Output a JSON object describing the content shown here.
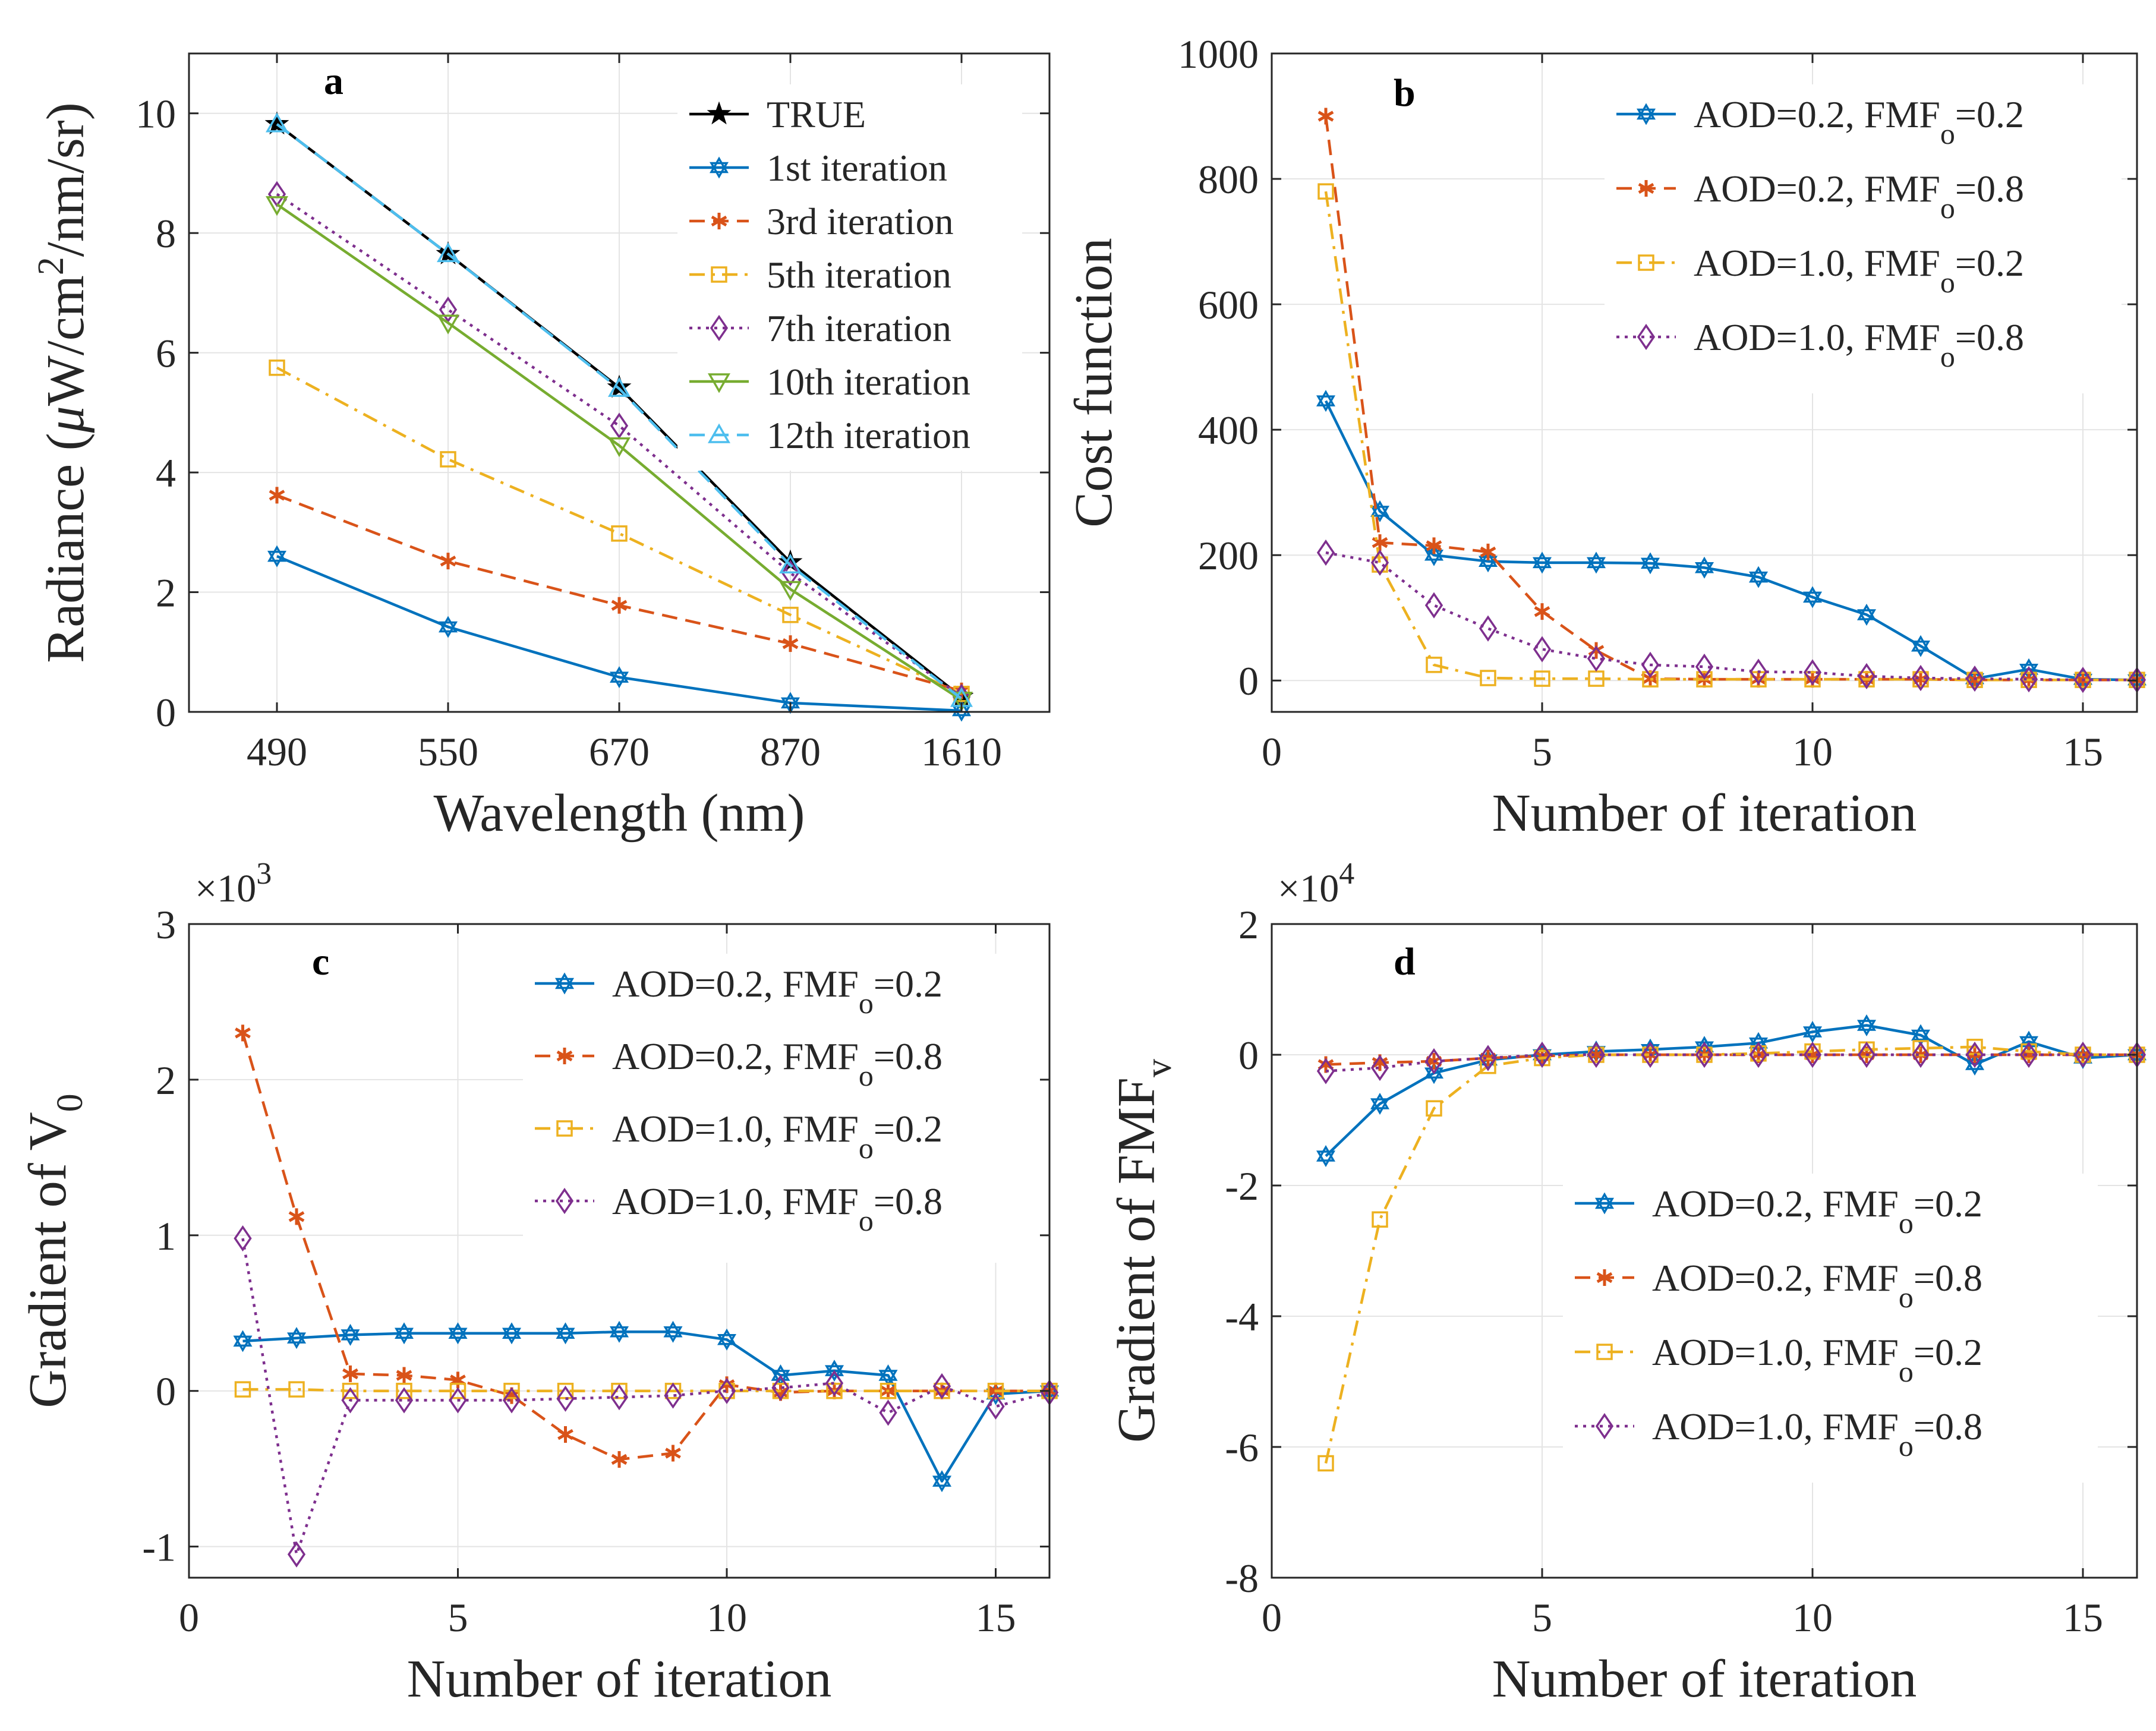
{
  "figure": {
    "background": "#ffffff"
  },
  "chart_data": [
    {
      "panel": "a",
      "type": "line",
      "xlabel": "Wavelength (nm)",
      "ylabel_parts": [
        "Radiance (",
        "μ",
        "W/cm",
        "2",
        "/nm/sr)"
      ],
      "categories": [
        "490",
        "550",
        "670",
        "870",
        "1610"
      ],
      "ylim": [
        0,
        11
      ],
      "yticks": [
        "0",
        "2",
        "4",
        "6",
        "8",
        "10"
      ],
      "ytick_values": [
        0,
        2,
        4,
        6,
        8,
        10
      ],
      "grid": true,
      "legend_position": "top-right",
      "series": [
        {
          "name": "TRUE",
          "label": "TRUE",
          "color": "#000000",
          "marker": "star-filled",
          "dash": "solid",
          "values": [
            9.82,
            7.65,
            5.42,
            2.5,
            0.25
          ]
        },
        {
          "name": "1st iteration",
          "label": "1st iteration",
          "color": "#0072bd",
          "marker": "hexagram",
          "dash": "solid",
          "values": [
            2.6,
            1.42,
            0.58,
            0.15,
            0.02
          ]
        },
        {
          "name": "3rd iteration",
          "label": "3rd iteration",
          "color": "#d95319",
          "marker": "asterisk",
          "dash": "dashed",
          "values": [
            3.62,
            2.52,
            1.78,
            1.14,
            0.35
          ]
        },
        {
          "name": "5th iteration",
          "label": "5th iteration",
          "color": "#edb120",
          "marker": "square",
          "dash": "dashdot",
          "values": [
            5.75,
            4.22,
            2.98,
            1.62,
            0.3
          ]
        },
        {
          "name": "7th iteration",
          "label": "7th iteration",
          "color": "#7e2f8e",
          "marker": "diamond",
          "dash": "dotted",
          "values": [
            8.65,
            6.72,
            4.78,
            2.32,
            0.25
          ]
        },
        {
          "name": "10th iteration",
          "label": "10th iteration",
          "color": "#77ac30",
          "marker": "triangle-down",
          "dash": "solid",
          "values": [
            8.48,
            6.5,
            4.45,
            2.05,
            0.2
          ]
        },
        {
          "name": "12th iteration",
          "label": "12th iteration",
          "color": "#4dbeee",
          "marker": "triangle-up",
          "dash": "dashed",
          "values": [
            9.82,
            7.65,
            5.4,
            2.45,
            0.22
          ]
        }
      ]
    },
    {
      "panel": "b",
      "type": "line",
      "xlabel": "Number of iteration",
      "ylabel": "Cost function",
      "xlim": [
        0,
        16
      ],
      "ylim": [
        -50,
        1000
      ],
      "xticks": [
        "0",
        "5",
        "10",
        "15"
      ],
      "xtick_values": [
        0,
        5,
        10,
        15
      ],
      "yticks": [
        "0",
        "200",
        "400",
        "600",
        "800",
        "1000"
      ],
      "ytick_values": [
        0,
        200,
        400,
        600,
        800,
        1000
      ],
      "grid": true,
      "legend_position": "top-right",
      "series": [
        {
          "name": "AOD=0.2, FMFo=0.2",
          "label_main": "AOD=0.2, FMF",
          "label_sub": "o",
          "label_tail": "=0.2",
          "color": "#0072bd",
          "marker": "hexagram",
          "dash": "solid",
          "x": [
            1,
            2,
            3,
            4,
            5,
            6,
            7,
            8,
            9,
            10,
            11,
            12,
            13,
            14,
            15,
            16
          ],
          "values": [
            446,
            270,
            200,
            190,
            188,
            188,
            187,
            180,
            165,
            133,
            105,
            55,
            3,
            18,
            2,
            1
          ]
        },
        {
          "name": "AOD=0.2, FMFo=0.8",
          "label_main": "AOD=0.2, FMF",
          "label_sub": "o",
          "label_tail": "=0.8",
          "color": "#d95319",
          "marker": "asterisk",
          "dash": "dashed",
          "x": [
            1,
            2,
            3,
            4,
            5,
            6,
            7,
            8,
            9,
            10,
            11,
            12,
            13,
            14,
            15,
            16
          ],
          "values": [
            900,
            220,
            215,
            205,
            110,
            48,
            3,
            2,
            2,
            2,
            2,
            2,
            1,
            1,
            1,
            1
          ]
        },
        {
          "name": "AOD=1.0, FMFo=0.2",
          "label_main": "AOD=1.0, FMF",
          "label_sub": "o",
          "label_tail": "=0.2",
          "color": "#edb120",
          "marker": "square",
          "dash": "dashdot",
          "x": [
            1,
            2,
            3,
            4,
            5,
            6,
            7,
            8,
            9,
            10,
            11,
            12,
            13,
            14,
            15,
            16
          ],
          "values": [
            780,
            185,
            25,
            4,
            3,
            3,
            2,
            2,
            2,
            2,
            2,
            2,
            1,
            1,
            1,
            1
          ]
        },
        {
          "name": "AOD=1.0, FMFo=0.8",
          "label_main": "AOD=1.0, FMF",
          "label_sub": "o",
          "label_tail": "=0.8",
          "color": "#7e2f8e",
          "marker": "diamond",
          "dash": "dotted",
          "x": [
            1,
            2,
            3,
            4,
            5,
            6,
            7,
            8,
            9,
            10,
            11,
            12,
            13,
            14,
            15,
            16
          ],
          "values": [
            204,
            188,
            120,
            83,
            50,
            35,
            25,
            22,
            14,
            13,
            7,
            4,
            3,
            2,
            1,
            1
          ]
        }
      ]
    },
    {
      "panel": "c",
      "type": "line",
      "xlabel": "Number of iteration",
      "ylabel_parts": [
        "Gradient of V",
        "0"
      ],
      "multiplier_base": "×10",
      "multiplier_exp": "3",
      "xlim": [
        0,
        16
      ],
      "ylim": [
        -1.2,
        3
      ],
      "xticks": [
        "0",
        "5",
        "10",
        "15"
      ],
      "xtick_values": [
        0,
        5,
        10,
        15
      ],
      "yticks": [
        "-1",
        "0",
        "1",
        "2",
        "3"
      ],
      "ytick_values": [
        -1,
        0,
        1,
        2,
        3
      ],
      "grid": true,
      "legend_position": "top-right",
      "series": [
        {
          "name": "AOD=0.2, FMFo=0.2",
          "label_main": "AOD=0.2, FMF",
          "label_sub": "o",
          "label_tail": "=0.2",
          "color": "#0072bd",
          "marker": "hexagram",
          "dash": "solid",
          "x": [
            1,
            2,
            3,
            4,
            5,
            6,
            7,
            8,
            9,
            10,
            11,
            12,
            13,
            14,
            15,
            16
          ],
          "values": [
            0.32,
            0.34,
            0.36,
            0.37,
            0.37,
            0.37,
            0.37,
            0.38,
            0.38,
            0.33,
            0.1,
            0.13,
            0.1,
            -0.58,
            -0.02,
            0.0
          ]
        },
        {
          "name": "AOD=0.2, FMFo=0.8",
          "label_main": "AOD=0.2, FMF",
          "label_sub": "o",
          "label_tail": "=0.8",
          "color": "#d95319",
          "marker": "asterisk",
          "dash": "dashed",
          "x": [
            1,
            2,
            3,
            4,
            5,
            6,
            7,
            8,
            9,
            10,
            11,
            12,
            13,
            14,
            15,
            16
          ],
          "values": [
            2.3,
            1.12,
            0.11,
            0.1,
            0.07,
            -0.03,
            -0.28,
            -0.44,
            -0.4,
            0.04,
            -0.01,
            0.0,
            0.0,
            0.0,
            0.0,
            0.0
          ]
        },
        {
          "name": "AOD=1.0, FMFo=0.2",
          "label_main": "AOD=1.0, FMF",
          "label_sub": "o",
          "label_tail": "=0.2",
          "color": "#edb120",
          "marker": "square",
          "dash": "dashdot",
          "x": [
            1,
            2,
            3,
            4,
            5,
            6,
            7,
            8,
            9,
            10,
            11,
            12,
            13,
            14,
            15,
            16
          ],
          "values": [
            0.01,
            0.01,
            0.0,
            0.0,
            0.0,
            0.0,
            0.0,
            0.0,
            0.0,
            0.0,
            0.0,
            0.0,
            0.0,
            0.0,
            0.0,
            0.0
          ]
        },
        {
          "name": "AOD=1.0, FMFo=0.8",
          "label_main": "AOD=1.0, FMF",
          "label_sub": "o",
          "label_tail": "=0.8",
          "color": "#7e2f8e",
          "marker": "diamond",
          "dash": "dotted",
          "x": [
            1,
            2,
            3,
            4,
            5,
            6,
            7,
            8,
            9,
            10,
            11,
            12,
            13,
            14,
            15,
            16
          ],
          "values": [
            0.98,
            -1.05,
            -0.06,
            -0.06,
            -0.06,
            -0.06,
            -0.05,
            -0.04,
            -0.03,
            0.0,
            0.02,
            0.05,
            -0.14,
            0.03,
            -0.1,
            -0.01
          ]
        }
      ]
    },
    {
      "panel": "d",
      "type": "line",
      "xlabel": "Number of iteration",
      "ylabel_parts": [
        "Gradient of FMF",
        "v"
      ],
      "multiplier_base": "×10",
      "multiplier_exp": "4",
      "xlim": [
        0,
        16
      ],
      "ylim": [
        -8,
        2
      ],
      "xticks": [
        "0",
        "5",
        "10",
        "15"
      ],
      "xtick_values": [
        0,
        5,
        10,
        15
      ],
      "yticks": [
        "-8",
        "-6",
        "-4",
        "-2",
        "0",
        "2"
      ],
      "ytick_values": [
        -8,
        -6,
        -4,
        -2,
        0,
        2
      ],
      "grid": true,
      "legend_position": "center-right",
      "series": [
        {
          "name": "AOD=0.2, FMFo=0.2",
          "label_main": "AOD=0.2, FMF",
          "label_sub": "o",
          "label_tail": "=0.2",
          "color": "#0072bd",
          "marker": "hexagram",
          "dash": "solid",
          "x": [
            1,
            2,
            3,
            4,
            5,
            6,
            7,
            8,
            9,
            10,
            11,
            12,
            13,
            14,
            15,
            16
          ],
          "values": [
            -1.55,
            -0.75,
            -0.28,
            -0.08,
            0.0,
            0.05,
            0.08,
            0.12,
            0.18,
            0.35,
            0.45,
            0.3,
            -0.15,
            0.2,
            -0.05,
            0.0
          ]
        },
        {
          "name": "AOD=0.2, FMFo=0.8",
          "label_main": "AOD=0.2, FMF",
          "label_sub": "o",
          "label_tail": "=0.8",
          "color": "#d95319",
          "marker": "asterisk",
          "dash": "dashed",
          "x": [
            1,
            2,
            3,
            4,
            5,
            6,
            7,
            8,
            9,
            10,
            11,
            12,
            13,
            14,
            15,
            16
          ],
          "values": [
            -0.15,
            -0.12,
            -0.1,
            -0.05,
            -0.02,
            0.0,
            0.0,
            0.0,
            0.0,
            0.0,
            0.0,
            0.0,
            0.0,
            0.0,
            0.0,
            0.0
          ]
        },
        {
          "name": "AOD=1.0, FMFo=0.2",
          "label_main": "AOD=1.0, FMF",
          "label_sub": "o",
          "label_tail": "=0.2",
          "color": "#edb120",
          "marker": "square",
          "dash": "dashdot",
          "x": [
            1,
            2,
            3,
            4,
            5,
            6,
            7,
            8,
            9,
            10,
            11,
            12,
            13,
            14,
            15,
            16
          ],
          "values": [
            -6.25,
            -2.52,
            -0.82,
            -0.17,
            -0.05,
            0.0,
            0.0,
            0.0,
            0.02,
            0.05,
            0.08,
            0.1,
            0.12,
            0.05,
            0.0,
            0.0
          ]
        },
        {
          "name": "AOD=1.0, FMFo=0.8",
          "label_main": "AOD=1.0, FMF",
          "label_sub": "o",
          "label_tail": "=0.8",
          "color": "#7e2f8e",
          "marker": "diamond",
          "dash": "dotted",
          "x": [
            1,
            2,
            3,
            4,
            5,
            6,
            7,
            8,
            9,
            10,
            11,
            12,
            13,
            14,
            15,
            16
          ],
          "values": [
            -0.25,
            -0.2,
            -0.1,
            -0.05,
            0.0,
            0.0,
            0.0,
            0.0,
            0.0,
            0.0,
            0.0,
            0.0,
            0.0,
            0.0,
            0.0,
            0.0
          ]
        }
      ]
    }
  ]
}
